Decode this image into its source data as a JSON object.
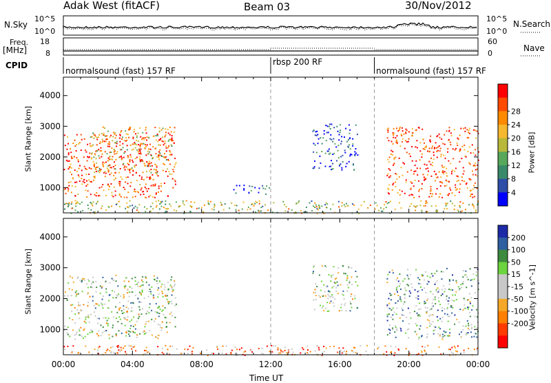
{
  "header": {
    "station": "Adak West (fitACF)",
    "beam": "Beam 03",
    "date": "30/Nov/2012"
  },
  "left_labels": {
    "nsky": "N.Sky",
    "freq_line1": "Freq.",
    "freq_line2": "[MHz]",
    "cpid": "CPID"
  },
  "right_labels": {
    "nsearch": "N.Search",
    "nave": "Nave"
  },
  "mini_ticks": {
    "noise_top": "10^5",
    "noise_bottom": "10^0",
    "freq_top": "18",
    "freq_bottom": "8",
    "nave_top": "60",
    "nave_bottom": "0"
  },
  "cpid_segments": [
    {
      "label": "normalsound (fast) 157 RF",
      "start_hour": 0,
      "end_hour": 12
    },
    {
      "label": "rbsp 200 RF",
      "start_hour": 12,
      "end_hour": 18
    },
    {
      "label": "normalsound (fast) 157 RF",
      "start_hour": 18,
      "end_hour": 24
    }
  ],
  "colors": {
    "power_scale": [
      "#0000ff",
      "#2e4ea8",
      "#3a8a6a",
      "#57a85a",
      "#b8b83a",
      "#f5b82e",
      "#ff8a00",
      "#ff4a00",
      "#ff0000"
    ],
    "velocity_scale": [
      "#1c2aa8",
      "#2e5fa0",
      "#3e8a3e",
      "#6bd43e",
      "#c8c8c8",
      "#c8c8c8",
      "#f5a828",
      "#ff7f00",
      "#ff3a00",
      "#ff0000"
    ]
  },
  "chart_data": [
    {
      "type": "heatmap",
      "name": "power",
      "xlabel": "Time UT",
      "ylabel": "Slant Range [km]",
      "colorbar_label": "Power [dB]",
      "x_range_hours": [
        0,
        24
      ],
      "ylim": [
        180,
        4600
      ],
      "yticks": [
        1000,
        2000,
        3000,
        4000
      ],
      "colorbar_ticks": [
        "4",
        "8",
        "12",
        "16",
        "20",
        "24",
        "28"
      ],
      "colorbar_range": [
        0,
        32
      ],
      "regions": [
        {
          "t0": 0.0,
          "t1": 6.5,
          "r0": 700,
          "r1": 2800,
          "level": 0.85
        },
        {
          "t0": 1.5,
          "t1": 6.5,
          "r0": 1500,
          "r1": 3000,
          "level": 0.6
        },
        {
          "t0": 9.7,
          "t1": 12.0,
          "r0": 800,
          "r1": 1100,
          "level": 0.12
        },
        {
          "t0": 14.4,
          "t1": 17.0,
          "r0": 1600,
          "r1": 3100,
          "level": 0.15
        },
        {
          "t0": 18.7,
          "t1": 24.0,
          "r0": 700,
          "r1": 3000,
          "level": 0.85
        },
        {
          "t0": 0.0,
          "t1": 24.0,
          "r0": 180,
          "r1": 600,
          "level": 0.5
        }
      ]
    },
    {
      "type": "heatmap",
      "name": "velocity",
      "xlabel": "Time UT",
      "ylabel": "Slant Range [km]",
      "colorbar_label": "Velocity [m s^-1]",
      "x_range_hours": [
        0,
        24
      ],
      "ylim": [
        180,
        4600
      ],
      "yticks": [
        1000,
        2000,
        3000,
        4000
      ],
      "colorbar_ticks": [
        "200",
        "100",
        "50",
        "15",
        "-15",
        "-50",
        "-100",
        "-200"
      ],
      "colorbar_range": [
        -250,
        250
      ],
      "regions": [
        {
          "t0": 0.0,
          "t1": 6.5,
          "r0": 700,
          "r1": 2800,
          "level": 0.45
        },
        {
          "t0": 14.4,
          "t1": 17.0,
          "r0": 1600,
          "r1": 3100,
          "level": 0.45
        },
        {
          "t0": 18.7,
          "t1": 24.0,
          "r0": 700,
          "r1": 3000,
          "level": 0.35
        },
        {
          "t0": 0.0,
          "t1": 24.0,
          "r0": 180,
          "r1": 500,
          "level": 0.7
        }
      ]
    }
  ],
  "x_ticks": [
    "00:00",
    "04:00",
    "08:00",
    "12:00",
    "16:00",
    "20:00",
    "00:00"
  ],
  "x_axis_label": "Time UT",
  "divider_hours": [
    12,
    18
  ]
}
